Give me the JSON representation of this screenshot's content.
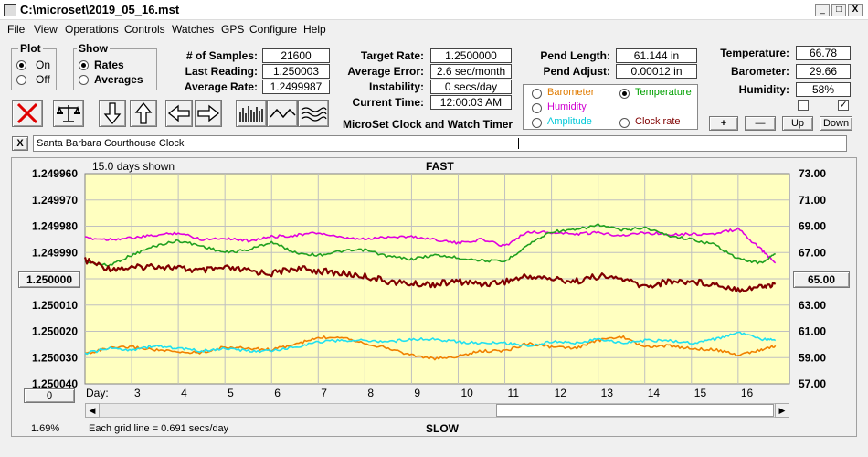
{
  "window": {
    "title": "C:\\microset\\2019_05_16.mst",
    "minimize_glyph": "_",
    "maximize_glyph": "□",
    "close_glyph": "X"
  },
  "menu": [
    "File",
    "View",
    "Operations",
    "Controls",
    "Watches",
    "GPS",
    "Configure",
    "Help"
  ],
  "plot_group": {
    "title": "Plot",
    "options": [
      "On",
      "Off"
    ],
    "selected": "On"
  },
  "show_group": {
    "title": "Show",
    "options": [
      "Rates",
      "Averages"
    ],
    "selected": "Rates"
  },
  "stats": {
    "samples_label": "# of Samples:",
    "samples": "21600",
    "last_reading_label": "Last Reading:",
    "last_reading": "1.250003",
    "average_rate_label": "Average Rate:",
    "average_rate": "1.2499987",
    "target_rate_label": "Target Rate:",
    "target_rate": "1.2500000",
    "average_error_label": "Average Error:",
    "average_error": "2.6 sec/month",
    "instability_label": "Instability:",
    "instability": "0 secs/day",
    "current_time_label": "Current Time:",
    "current_time": "12:00:03 AM",
    "pend_length_label": "Pend Length:",
    "pend_length": "61.144 in",
    "pend_adjust_label": "Pend Adjust:",
    "pend_adjust": "0.00012 in",
    "temperature_label": "Temperature:",
    "temperature": "66.78",
    "barometer_label": "Barometer:",
    "barometer": "29.66",
    "humidity_label": "Humidity:",
    "humidity": "58%"
  },
  "app_caption": "MicroSet Clock and Watch Timer",
  "overlay_group": {
    "items": [
      {
        "label": "Barometer",
        "color": "#e07b00",
        "selected": false
      },
      {
        "label": "Temperature",
        "color": "#00a000",
        "selected": true
      },
      {
        "label": "Humidity",
        "color": "#d000d0",
        "selected": false
      },
      {
        "label": "Amplitude",
        "color": "#00c8d8",
        "selected": false
      },
      {
        "label": "Clock rate",
        "color": "#800000",
        "selected": false
      }
    ]
  },
  "scale_buttons": [
    "+",
    "—",
    "Up",
    "Down"
  ],
  "checkboxes": [
    {
      "checked": false
    },
    {
      "checked": true
    }
  ],
  "toolbar_icons": [
    "delete-x-icon",
    "balance-scale-icon",
    "arrow-down-icon",
    "arrow-up-icon",
    "arrow-left-icon",
    "arrow-right-icon",
    "bar-graph-icon",
    "wave-icon",
    "multi-wave-icon"
  ],
  "clock_name": {
    "close_glyph": "X",
    "value": "Santa Barbara Courthouse Clock"
  },
  "chart_labels": {
    "days_shown": "15.0 days shown",
    "fast": "FAST",
    "slow": "SLOW",
    "day_label": "Day:",
    "grid_note": "Each grid line = 0.691 secs/day",
    "percent": "1.69%",
    "left_button": "1.250000",
    "right_button": "65.00",
    "bottom_left_button": "0"
  },
  "colors": {
    "plot_bg": "#ffffc0",
    "rate": "#800000",
    "temperature": "#20a020",
    "humidity": "#e000e0",
    "barometer": "#f08000",
    "amplitude": "#20e0f0"
  },
  "chart_data": {
    "type": "line",
    "x_label": "Day:",
    "x_ticks": [
      3,
      4,
      5,
      6,
      7,
      8,
      9,
      10,
      11,
      12,
      13,
      14,
      15,
      16
    ],
    "xlim": [
      2,
      17.1
    ],
    "y_left_ticks": [
      "1.249960",
      "1.249970",
      "1.249980",
      "1.249990",
      "1.250000",
      "1.250010",
      "1.250020",
      "1.250030",
      "1.250040"
    ],
    "y_left_range": [
      1.24996,
      1.25004
    ],
    "y_left_inverted": true,
    "y_right_ticks": [
      "73.00",
      "71.00",
      "69.00",
      "67.00",
      "65.00",
      "63.00",
      "61.00",
      "59.00",
      "57.00"
    ],
    "y_right_range": [
      57,
      73
    ],
    "grid": true,
    "series": [
      {
        "axis": "left",
        "x": [
          2,
          2.5,
          3,
          3.5,
          4,
          4.5,
          5,
          5.5,
          6,
          6.5,
          7,
          7.5,
          8,
          8.5,
          9,
          9.5,
          10,
          10.5,
          11,
          11.5,
          12,
          12.5,
          13,
          13.5,
          14,
          14.5,
          15,
          15.5,
          16,
          16.5,
          16.8
        ],
        "values": [
          1.249993,
          1.249996,
          1.249996,
          1.249995,
          1.249996,
          1.249997,
          1.249996,
          1.249997,
          1.249998,
          1.249996,
          1.249997,
          1.249998,
          1.249999,
          1.250001,
          1.250002,
          1.250002,
          1.250001,
          1.250002,
          1.250001,
          1.249999,
          1.25,
          1.250001,
          1.249999,
          1.25,
          1.250003,
          1.250001,
          1.250001,
          1.250002,
          1.250004,
          1.250003,
          1.250002
        ]
      },
      {
        "axis": "right",
        "x": [
          2,
          2.5,
          3,
          3.5,
          4,
          4.5,
          5,
          5.5,
          6,
          6.5,
          7,
          7.5,
          8,
          8.5,
          9,
          9.5,
          10,
          10.5,
          11,
          11.5,
          12,
          12.5,
          13,
          13.5,
          14,
          14.5,
          15,
          15.5,
          16,
          16.5,
          16.8
        ],
        "values": [
          66.3,
          66.0,
          66.8,
          67.5,
          67.9,
          67.5,
          67.0,
          67.2,
          67.8,
          67.0,
          66.8,
          67.1,
          67.2,
          66.7,
          66.5,
          66.8,
          66.6,
          66.4,
          66.3,
          67.6,
          68.6,
          68.7,
          69.1,
          68.7,
          68.9,
          68.3,
          68.0,
          67.6,
          66.5,
          66.2,
          66.9
        ]
      },
      {
        "axis": "right",
        "x": [
          2,
          2.5,
          3,
          3.5,
          4,
          4.5,
          5,
          5.5,
          6,
          6.5,
          7,
          7.5,
          8,
          8.5,
          9,
          9.5,
          10,
          10.5,
          11,
          11.5,
          12,
          12.5,
          13,
          13.5,
          14,
          14.5,
          15,
          15.5,
          16,
          16.5,
          16.8
        ],
        "values": [
          68.1,
          68.0,
          68.1,
          68.3,
          68.5,
          68.0,
          68.1,
          67.9,
          68.2,
          68.3,
          68.5,
          68.1,
          68.0,
          68.2,
          68.2,
          68.0,
          67.7,
          68.0,
          67.5,
          68.6,
          68.5,
          68.4,
          68.5,
          68.3,
          68.5,
          68.4,
          68.4,
          68.4,
          68.8,
          67.2,
          66.2
        ]
      },
      {
        "axis": "right",
        "x": [
          2,
          2.5,
          3,
          3.5,
          4,
          4.5,
          5,
          5.5,
          6,
          6.5,
          7,
          7.5,
          8,
          8.5,
          9,
          9.5,
          10,
          10.5,
          11,
          11.5,
          12,
          12.5,
          13,
          13.5,
          14,
          14.5,
          15,
          15.5,
          16,
          16.5,
          16.8
        ],
        "values": [
          59.3,
          59.7,
          59.8,
          59.6,
          59.4,
          59.4,
          59.8,
          59.7,
          59.6,
          60.0,
          60.5,
          60.6,
          60.1,
          59.7,
          59.2,
          58.9,
          59.1,
          59.5,
          59.5,
          60.1,
          59.8,
          59.7,
          60.3,
          60.6,
          59.8,
          59.9,
          59.7,
          59.6,
          59.2,
          59.6,
          59.9
        ]
      },
      {
        "axis": "right",
        "x": [
          2,
          2.5,
          3,
          3.5,
          4,
          4.5,
          5,
          5.5,
          6,
          6.5,
          7,
          7.5,
          8,
          8.5,
          9,
          9.5,
          10,
          10.5,
          11,
          11.5,
          12,
          12.5,
          13,
          13.5,
          14,
          14.5,
          15,
          15.5,
          16,
          16.5,
          16.8
        ],
        "values": [
          59.3,
          59.7,
          59.6,
          59.9,
          59.7,
          59.5,
          59.7,
          59.5,
          59.5,
          59.8,
          60.2,
          60.3,
          60.3,
          60.2,
          60.4,
          60.4,
          60.2,
          60.1,
          60.1,
          59.9,
          60.2,
          60.1,
          60.4,
          60.1,
          60.3,
          60.3,
          60.1,
          60.4,
          60.9,
          60.4,
          60.3
        ]
      }
    ]
  }
}
